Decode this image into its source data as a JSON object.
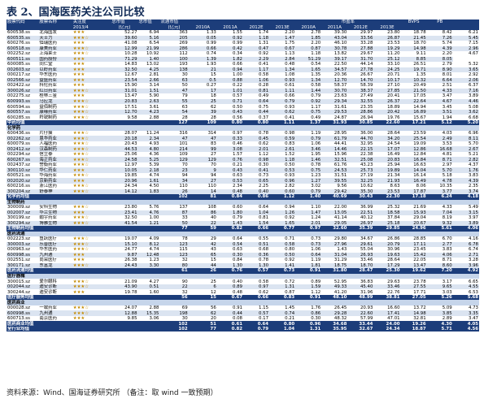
{
  "title": "表 2、国海医药关注公司比较",
  "header": {
    "row1": [
      "股票代码",
      "股票名称",
      "关注度",
      "总市值",
      "总市值",
      "流通市值",
      "",
      "",
      "",
      "",
      "市盈率",
      "",
      "",
      "",
      "BVPS",
      "PB"
    ],
    "row2": [
      "",
      "",
      "",
      "2013/4",
      "(亿元)",
      "(亿元)",
      "2010A",
      "2011A",
      "2012E",
      "2013E",
      "2010A",
      "2011A",
      "2012E",
      "2013E",
      "",
      ""
    ]
  },
  "sections": [
    {
      "label": "",
      "rows": [
        [
          "600538.ss",
          "北海国发",
          "★★★",
          "52.27",
          "6.94",
          "363",
          "1.33",
          "1.55",
          "1.74",
          "2.20",
          "2.78",
          "39.30",
          "29.97",
          "23.80",
          "18.78",
          "8.42",
          "6.21"
        ],
        [
          "600535.ss",
          "天士力",
          "★★★☆",
          "39.60",
          "5.16",
          "205",
          "0.05",
          "0.92",
          "1.18",
          "1.47",
          "1.85",
          "43.04",
          "33.56",
          "26.87",
          "21.45",
          "7.26",
          "5.45"
        ],
        [
          "600276.ss",
          "恒瑞医药",
          "★★★",
          "41.08",
          "6.54",
          "269",
          "0.99",
          "0.99",
          "1.31",
          "1.75",
          "2.20",
          "46.10",
          "33.28",
          "23.53",
          "18.70",
          "5.74",
          "7.15"
        ],
        [
          "600518.ss",
          "康美药业",
          "★★★☆",
          "12.99",
          "21.99",
          "286",
          "0.66",
          "0.42",
          "0.47",
          "0.67",
          "0.87",
          "30.78",
          "27.88",
          "19.29",
          "14.98",
          "4.39",
          "2.96"
        ],
        [
          "002252.sz",
          "上海莱士",
          "★★★☆",
          "10.28",
          "10.92",
          "112",
          "0.74",
          "0.34",
          "0.92",
          "1.13",
          "1.18",
          "13.82",
          "29.67",
          "11.20",
          "9.11",
          "2.20",
          "4.67"
        ],
        [
          "600511.ss",
          "国药股份",
          "★★★",
          "71.29",
          "1.40",
          "100",
          "1.39",
          "1.82",
          "2.29",
          "2.84",
          "51.29",
          "39.17",
          "31.70",
          "25.12",
          "8.85",
          "8.05"
        ],
        [
          "600085.ss",
          "同仁堂",
          "★★★",
          "14.83",
          "13.02",
          "193",
          "1.93",
          "0.66",
          "0.41",
          "0.48",
          "0.54",
          "22.50",
          "44.14",
          "33.10",
          "26.51",
          "2.79",
          "5.32"
        ],
        [
          "002603.sz",
          "以岭药业",
          "★★★",
          "32.50",
          "4.25",
          "138",
          "21",
          "0.94",
          "1.17",
          "1.34",
          "1.65",
          "34.57",
          "27.78",
          "24.25",
          "19.71",
          "8.90",
          "3.65"
        ],
        [
          "000217.sz",
          "华东医药",
          "★★★",
          "12.67",
          "2.81",
          "30",
          "15",
          "1.00",
          "0.58",
          "1.08",
          "1.35",
          "20.36",
          "26.67",
          "20.71",
          "1.35",
          "8.01",
          "2.92"
        ],
        [
          "002566.sz",
          "益盛药业",
          "★★★",
          "23.54",
          "2.66",
          "63",
          "0.5",
          "0.88",
          "1.06",
          "0.93",
          "1.34",
          "12.70",
          "14.70",
          "10.17",
          "10.32",
          "6.64",
          "2.06"
        ],
        [
          "002422.sz",
          "科伦药业",
          "★★★",
          "15.90",
          "3.14",
          "50",
          "0.27",
          "0.22",
          "0.28",
          "0.61",
          "0.58",
          "58.37",
          "58.39",
          "27.10",
          "20.49",
          "2.51",
          "6.37"
        ],
        [
          "300026.sz",
          "红日药业",
          "★★★☆",
          "31.01",
          "1.51",
          "47",
          "17",
          "1.01",
          "0.81",
          "1.11",
          "1.44",
          "30.70",
          "38.37",
          "27.85",
          "21.50",
          "4.33",
          "7.16"
        ],
        [
          "002275.sz",
          "桂林三金",
          "★★★",
          "13.47",
          "5.90",
          "79",
          "18",
          "0.57",
          "0.49",
          "0.66",
          "0.79",
          "23.63",
          "27.49",
          "20.41",
          "17.05",
          "3.47",
          "3.89"
        ],
        [
          "600993.ss",
          "马应龙",
          "★★★☆",
          "20.83",
          "2.63",
          "55",
          "25",
          "0.71",
          "0.64",
          "0.79",
          "0.92",
          "29.34",
          "32.55",
          "26.37",
          "22.64",
          "4.67",
          "4.46"
        ],
        [
          "600594.ss",
          "益佰制药",
          "★★★☆",
          "17.51",
          "3.61",
          "63",
          "62",
          "0.50",
          "0.75",
          "0.93",
          "1.17",
          "31.61",
          "23.35",
          "18.89",
          "14.94",
          "3.45",
          "5.08"
        ],
        [
          "600557.ss",
          "康缘药业",
          "★★★☆",
          "12.70",
          "4.23",
          "54",
          "39",
          "0.43",
          "0.44",
          "0.62",
          "0.75",
          "29.53",
          "28.86",
          "20.42",
          "16.89",
          "3.51",
          "3.62"
        ],
        [
          "600285.ss",
          "羚锐制药",
          "★★★☆",
          "9.58",
          "2.88",
          "28",
          "28",
          "0.56",
          "0.37",
          "0.41",
          "0.49",
          "24.87",
          "26.94",
          "19.76",
          "15.67",
          "1.94",
          "6.68"
        ]
      ],
      "avg": [
        "中药均值",
        "",
        "",
        "",
        "127",
        "109",
        "0.80",
        "0.80",
        "1.11",
        "1.37",
        "31.93",
        "30.85",
        "22.60",
        "17.21",
        "5.12",
        "5.20"
      ]
    },
    {
      "label": "化学药",
      "rows": [
        [
          "600436.ss",
          "片仔癀",
          "★★★☆",
          "28.07",
          "11.24",
          "316",
          "314",
          "0.97",
          "0.78",
          "0.98",
          "1.19",
          "28.95",
          "36.00",
          "28.64",
          "23.59",
          "4.03",
          "6.96"
        ],
        [
          "002262.sz",
          "恩华药业",
          "★★★☆",
          "20.18",
          "2.34",
          "47",
          "47",
          "0.33",
          "0.45",
          "0.59",
          "0.79",
          "61.79",
          "44.70",
          "34.20",
          "25.54",
          "2.49",
          "8.11"
        ],
        [
          "600079.ss",
          "人福医药",
          "★★★☆",
          "20.43",
          "4.93",
          "101",
          "83",
          "0.46",
          "0.62",
          "0.83",
          "1.06",
          "44.41",
          "32.95",
          "24.54",
          "19.09",
          "3.53",
          "5.70"
        ],
        [
          "002412.sz",
          "汉森制药",
          "★★★☆",
          "44.53",
          "4.80",
          "214",
          "99",
          "3.08",
          "2.01",
          "2.61",
          "3.46",
          "14.46",
          "22.15",
          "17.07",
          "12.86",
          "16.68",
          "2.67"
        ],
        [
          "002294.sz",
          "信立泰",
          "★★★☆",
          "25.06",
          "4.36",
          "109",
          "27",
          "1.57",
          "1.12",
          "1.52",
          "1.95",
          "15.96",
          "22.38",
          "16.49",
          "12.84",
          "4.81",
          "5.21"
        ],
        [
          "600267.ss",
          "海正药业",
          "★★★☆",
          "24.58",
          "5.25",
          "129",
          "129",
          "0.76",
          "0.98",
          "1.18",
          "1.46",
          "32.51",
          "25.08",
          "20.83",
          "16.84",
          "8.71",
          "2.82"
        ],
        [
          "002437.sz",
          "誉衡药业",
          "★★★☆",
          "12.97",
          "5.39",
          "70",
          "70",
          "0.21",
          "0.30",
          "0.50",
          "0.78",
          "61.76",
          "43.23",
          "25.94",
          "16.63",
          "2.97",
          "4.37"
        ],
        [
          "300110.sz",
          "华仁药业",
          "★★★",
          "10.05",
          "2.18",
          "23",
          "9",
          "0.43",
          "0.41",
          "0.53",
          "0.75",
          "24.53",
          "25.73",
          "19.89",
          "14.04",
          "5.70",
          "1.76"
        ],
        [
          "600521.ss",
          "华海药业",
          "★★★☆",
          "19.85",
          "4.74",
          "94",
          "94",
          "0.63",
          "0.73",
          "0.93",
          "1.23",
          "31.51",
          "27.19",
          "21.34",
          "16.14",
          "5.18",
          "3.83"
        ],
        [
          "002020.sz",
          "京新药业",
          "★★★",
          "20.96",
          "1.61",
          "34",
          "27",
          "0.53",
          "0.65",
          "0.96",
          "1.27",
          "39.55",
          "32.25",
          "21.93",
          "16.49",
          "4.78",
          "4.39"
        ],
        [
          "600216.ss",
          "浙江医药",
          "★★★☆",
          "24.34",
          "4.50",
          "110",
          "110",
          "2.34",
          "2.25",
          "2.82",
          "3.02",
          "9.56",
          "10.62",
          "8.63",
          "8.06",
          "10.35",
          "2.35"
        ],
        [
          "300204.sz",
          "舒泰神",
          "★★★☆",
          "14.12",
          "1.83",
          "26",
          "14",
          "0.48",
          "0.40",
          "0.60",
          "0.79",
          "29.42",
          "35.30",
          "23.53",
          "17.87",
          "3.77",
          "3.74"
        ]
      ],
      "avg": [
        "化学药均值",
        "",
        "",
        "",
        "102",
        "81",
        "0.84",
        "0.86",
        "1.12",
        "1.40",
        "40.69",
        "30.43",
        "22.30",
        "17.18",
        "6.24",
        "4.18"
      ]
    },
    {
      "label": "生物制药",
      "rows": [
        [
          "300009.sz",
          "安科生物",
          "★★★☆",
          "23.80",
          "5.76",
          "137",
          "108",
          "0.60",
          "0.64",
          "0.94",
          "1.10",
          "22.00",
          "36.99",
          "25.32",
          "21.69",
          "4.33",
          "5.49"
        ],
        [
          "002007.sz",
          "华兰生物",
          "★★★",
          "23.41",
          "4.76",
          "87",
          "86",
          "1.80",
          "1.04",
          "1.26",
          "1.47",
          "13.05",
          "22.51",
          "18.58",
          "15.93",
          "7.04",
          "3.15"
        ],
        [
          "300199.sz",
          "翰宇药业",
          "★★★☆",
          "32.50",
          "1.00",
          "33",
          "40",
          "0.79",
          "0.81",
          "0.92",
          "1.24",
          "41.14",
          "40.12",
          "37.84",
          "29.04",
          "8.19",
          "3.97"
        ],
        [
          "300294.sz",
          "博雅生物",
          "★★★☆",
          "41.54",
          "1.21",
          "50",
          "22",
          "1.43",
          "1.54",
          "1.65",
          "2.01",
          "29.05",
          "26.97",
          "25.18",
          "20.67",
          "9.32",
          "3.89"
        ]
      ],
      "avg": [
        "生物制药均值",
        "",
        "",
        "",
        "77",
        "59",
        "0.82",
        "0.66",
        "0.77",
        "0.97",
        "32.60",
        "35.39",
        "29.85",
        "24.96",
        "5.61",
        "4.06"
      ]
    },
    {
      "label": "医药流通",
      "rows": [
        [
          "002223.sz",
          "鱼跃医疗",
          "★★★☆",
          "19.07",
          "4.09",
          "78",
          "29",
          "0.64",
          "0.55",
          "0.71",
          "0.73",
          "29.80",
          "34.67",
          "26.86",
          "28.85",
          "6.70",
          "4.16"
        ],
        [
          "300003.sz",
          "乐普医疗",
          "★★★☆",
          "15.10",
          "8.12",
          "123",
          "42",
          "0.54",
          "0.51",
          "0.58",
          "0.73",
          "27.96",
          "29.61",
          "20.79",
          "17.11",
          "2.77",
          "6.78"
        ],
        [
          "000963.sz",
          "华东医药",
          "★★★☆",
          "24.77",
          "4.74",
          "115",
          "43",
          "0.63",
          "0.68",
          "0.80",
          "1.06",
          "1.43",
          "55.04",
          "30.96",
          "23.45",
          "3.83",
          "6.74"
        ],
        [
          "600998.ss",
          "九州通",
          "★★★",
          "9.87",
          "12.48",
          "123",
          "65",
          "0.30",
          "0.36",
          "0.50",
          "0.64",
          "31.04",
          "26.93",
          "19.63",
          "15.42",
          "4.06",
          "2.71"
        ],
        [
          "002551.sz",
          "尚荣医疗",
          "★★★",
          "26.38",
          "1.23",
          "32",
          "15",
          "0.84",
          "0.78",
          "0.92",
          "1.19",
          "31.29",
          "33.46",
          "28.64",
          "22.05",
          "8.71",
          "3.28"
        ],
        [
          "300171.sz",
          "东富龙",
          "★★★☆",
          "24.43",
          "3.30",
          "80",
          "44",
          "1.30",
          "1.30",
          "1.41",
          "1.81",
          "18.75",
          "18.70",
          "17.29",
          "13.47",
          "8.60",
          "3.96"
        ]
      ],
      "avg": [
        "医药流通均值",
        "",
        "",
        "",
        "61",
        "26",
        "0.76",
        "0.57",
        "0.73",
        "0.91",
        "31.80",
        "28.47",
        "25.30",
        "19.62",
        "7.20",
        "4.92"
      ]
    },
    {
      "label": "医疗器械",
      "rows": [
        [
          "300015.sz",
          "爱尔眼科",
          "★★★☆",
          "21.09",
          "4.27",
          "90",
          "25",
          "0.40",
          "0.58",
          "0.72",
          "0.89",
          "52.95",
          "36.83",
          "29.63",
          "23.78",
          "3.17",
          "6.65"
        ],
        [
          "002044.sz",
          "迪安诊断",
          "★★★☆",
          "43.90",
          "0.51",
          "22",
          "6",
          "0.89",
          "0.97",
          "1.31",
          "1.59",
          "49.33",
          "45.40",
          "33.46",
          "27.55",
          "9.65",
          "4.55"
        ],
        [
          "300244.sz",
          "迪安诊断",
          "★★★",
          "19.78",
          "1.60",
          "32",
          "12",
          "0.48",
          "0.62",
          "0.87",
          "1.12",
          "41.20",
          "31.96",
          "22.76",
          "17.71",
          "3.03",
          "6.53"
        ]
      ],
      "avg": [
        "医疗服务均值",
        "",
        "",
        "",
        "56",
        "15",
        "0.67",
        "0.66",
        "0.83",
        "0.91",
        "48.10",
        "48.99",
        "38.81",
        "27.05",
        "5.26",
        "5.68"
      ]
    },
    {
      "label": "医药商业",
      "rows": [
        [
          "000028.sz",
          "一致药业",
          "★★★☆",
          "24.07",
          "2.88",
          "69",
          "56",
          "0.91",
          "1.15",
          "1.45",
          "1.76",
          "26.45",
          "20.93",
          "16.60",
          "13.72",
          "5.09",
          "4.73"
        ],
        [
          "600998.ss",
          "九州通",
          "★★★☆",
          "12.88",
          "15.35",
          "198",
          "62",
          "0.44",
          "0.57",
          "0.74",
          "0.86",
          "29.28",
          "22.60",
          "17.41",
          "14.98",
          "3.85",
          "3.35"
        ],
        [
          "600713.ss",
          "南京医药",
          "★★★",
          "9.85",
          "3.06",
          "30",
          "20",
          "0.08",
          "0.17",
          "0.21",
          "0.30",
          "48.32",
          "57.99",
          "47.01",
          "32.81",
          "2.89",
          "3.47"
        ]
      ],
      "avg": [
        "医药商业均值",
        "",
        "",
        "",
        "102",
        "51",
        "0.61",
        "0.64",
        "0.80",
        "0.96",
        "34.68",
        "33.44",
        "24.00",
        "19.26",
        "4.30",
        "4.05"
      ]
    }
  ],
  "total": [
    "全行业均值",
    "",
    "",
    "",
    "102",
    "77",
    "0.82",
    "0.79",
    "1.04",
    "1.31",
    "35.95",
    "32.67",
    "24.34",
    "18.87",
    "5.71",
    "4.56"
  ],
  "source": "资料来源：Wind、国海证券研究所  （备注：取 wind 一致预期）"
}
